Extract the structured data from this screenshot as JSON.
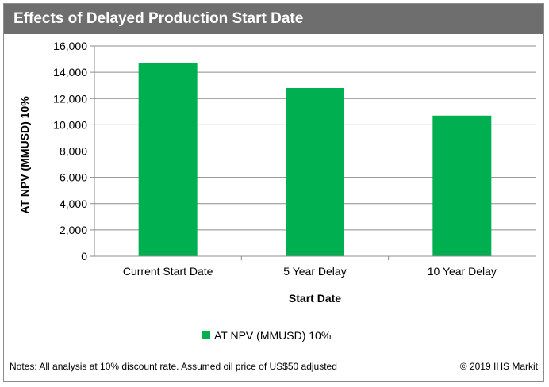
{
  "header": {
    "title": "Effects of Delayed Production Start Date"
  },
  "chart_data": {
    "type": "bar",
    "categories": [
      "Current Start Date",
      "5 Year Delay",
      "10 Year Delay"
    ],
    "series": [
      {
        "name": "AT NPV (MMUSD) 10%",
        "values": [
          14700,
          12800,
          10700
        ],
        "color": "#00b050"
      }
    ],
    "xlabel": "Start Date",
    "ylabel": "AT NPV (MMUSD) 10%",
    "ylim": [
      0,
      16000
    ],
    "yticks": [
      "0",
      "2,000",
      "4,000",
      "6,000",
      "8,000",
      "10,000",
      "12,000",
      "14,000",
      "16,000"
    ],
    "grid": true,
    "legend_position": "bottom"
  },
  "footer": {
    "notes": "Notes: All analysis at 10% discount rate. Assumed oil price of US$50 adjusted",
    "copyright": "© 2019 IHS Markit"
  }
}
